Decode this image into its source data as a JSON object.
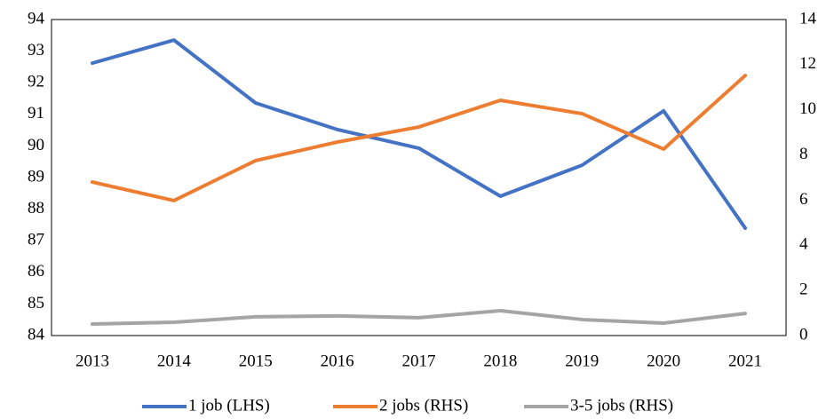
{
  "chart_data": {
    "type": "line",
    "categories": [
      "2013",
      "2014",
      "2015",
      "2016",
      "2017",
      "2018",
      "2019",
      "2020",
      "2021"
    ],
    "series": [
      {
        "name": "1 job (LHS)",
        "color": "#4472c4",
        "values": [
          92.62,
          93.35,
          91.36,
          90.52,
          89.93,
          88.41,
          89.39,
          91.11,
          87.4
        ]
      },
      {
        "name": "2 jobs (RHS)",
        "color": "#ed7d31",
        "axis": "y2",
        "values": [
          6.8,
          5.98,
          7.75,
          8.57,
          9.24,
          10.42,
          9.83,
          8.26,
          11.52
        ]
      },
      {
        "name": "3-5 jobs (RHS)",
        "color": "#a5a5a5",
        "axis": "y2",
        "values": [
          0.51,
          0.59,
          0.83,
          0.87,
          0.79,
          1.1,
          0.71,
          0.55,
          0.98
        ]
      }
    ],
    "ylim": [
      84,
      94
    ],
    "yticks": [
      84,
      85,
      86,
      87,
      88,
      89,
      90,
      91,
      92,
      93,
      94
    ],
    "y2lim": [
      0,
      14
    ],
    "y2ticks": [
      0,
      2,
      4,
      6,
      8,
      10,
      12,
      14
    ],
    "legend": "bottom"
  }
}
